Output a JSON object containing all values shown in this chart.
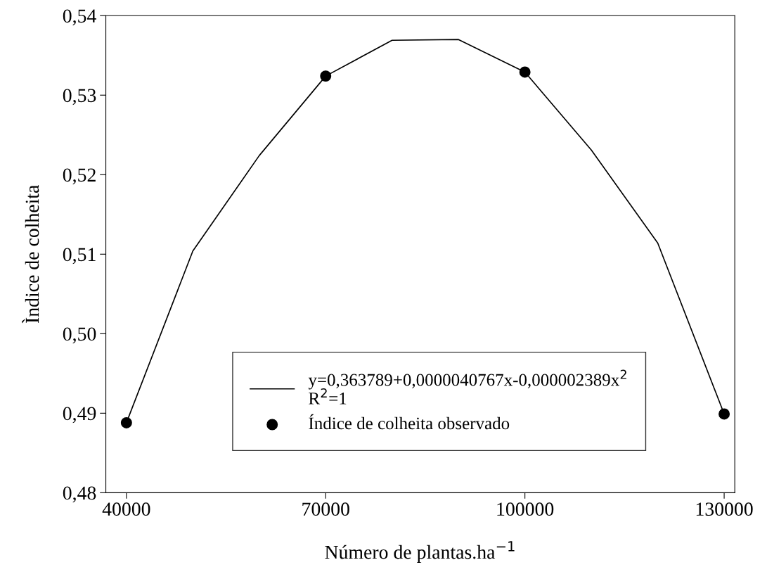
{
  "chart_data": {
    "type": "line",
    "xlabel": "Número de plantas.ha$^{−1}$",
    "ylabel": "Ìndice de colheita",
    "xlim": [
      36900,
      131600
    ],
    "ylim": [
      0.48,
      0.54
    ],
    "xticks": [
      40000,
      70000,
      100000,
      130000
    ],
    "yticks": [
      {
        "value": 0.48,
        "label": "0,48"
      },
      {
        "value": 0.49,
        "label": "0,49"
      },
      {
        "value": 0.5,
        "label": "0,50"
      },
      {
        "value": 0.51,
        "label": "0,51"
      },
      {
        "value": 0.52,
        "label": "0,52"
      },
      {
        "value": 0.53,
        "label": "0,53"
      },
      {
        "value": 0.54,
        "label": "0,54"
      }
    ],
    "grid": false,
    "legend": "bottom",
    "series": [
      {
        "name": "y=0,363789+0,0000040767x-0,000002389x$^{2}$\nR$^{2}$=1",
        "color": "#000000",
        "marker": "none",
        "line_style": "solid",
        "x": [
          40000,
          50000,
          60000,
          70000,
          80000,
          90000,
          100000,
          110000,
          120000,
          130000
        ],
        "values": [
          0.4888,
          0.5104,
          0.5224,
          0.5324,
          0.5369,
          0.537,
          0.5329,
          0.5231,
          0.5114,
          0.4899
        ]
      },
      {
        "name": "Índice de colheita observado",
        "type": "scatter",
        "color": "#000000",
        "marker": "circle",
        "x": [
          40000,
          70000,
          100000,
          130000
        ],
        "values": [
          0.4888,
          0.5324,
          0.5329,
          0.4899
        ]
      }
    ]
  }
}
